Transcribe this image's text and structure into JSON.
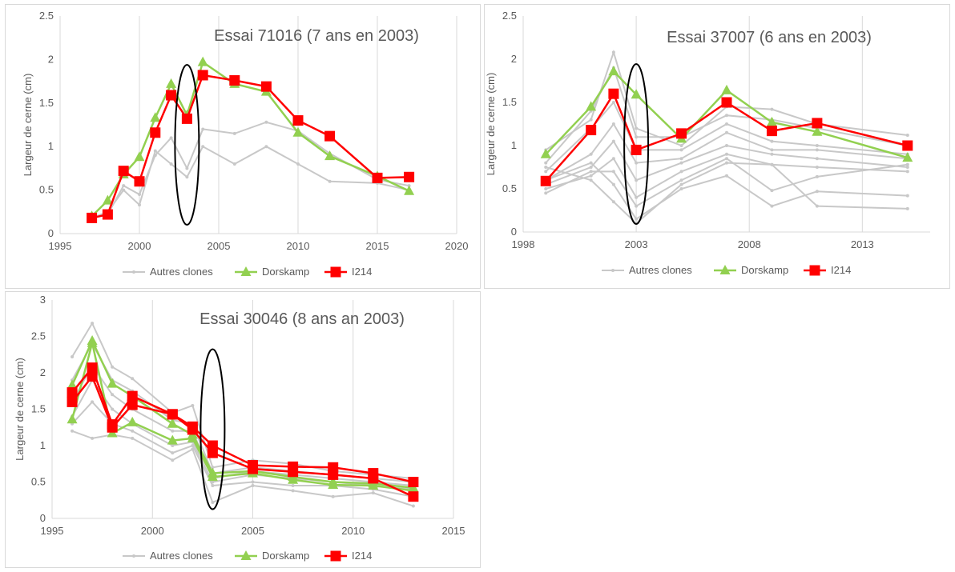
{
  "colors": {
    "others": "#c8c8c8",
    "dorskamp": "#92d050",
    "i214": "#ff0000",
    "ellipse": "#000000",
    "grid": "#d9d9d9",
    "text": "#595959"
  },
  "chart_data": [
    {
      "type": "line",
      "title": "Essai 71016 (7 ans en 2003)",
      "ylabel": "Largeur de cerne (cm)",
      "xlim": [
        1995,
        2020
      ],
      "ylim": [
        0,
        2.5
      ],
      "xticks": [
        "1995",
        "2000",
        "2005",
        "2010",
        "2015",
        "2020"
      ],
      "yticks": [
        "0",
        "0.5",
        "1",
        "1.5",
        "2",
        "2.5"
      ],
      "legend": [
        "Autres clones",
        "Dorskamp",
        "I214"
      ],
      "legend_position": "bottom",
      "ellipse_year": 2003,
      "series": [
        {
          "name": "Autres clones",
          "group": "others",
          "x": [
            1997,
            1998,
            1999,
            2000,
            2001,
            2002,
            2003,
            2004,
            2006,
            2008,
            2010,
            2012,
            2015,
            2017
          ],
          "y": [
            0.18,
            0.22,
            0.55,
            0.45,
            0.9,
            1.1,
            0.75,
            1.2,
            1.15,
            1.28,
            1.18,
            0.92,
            0.62,
            0.55
          ]
        },
        {
          "name": "",
          "group": "others",
          "x": [
            1997,
            1998,
            1999,
            2000,
            2001,
            2002,
            2003,
            2004,
            2006,
            2008,
            2010,
            2012,
            2015,
            2017
          ],
          "y": [
            0.18,
            0.25,
            0.5,
            0.33,
            0.95,
            0.8,
            0.65,
            1.0,
            0.8,
            1.0,
            0.8,
            0.6,
            0.58,
            0.5
          ]
        },
        {
          "name": "Dorskamp",
          "group": "dorskamp",
          "x": [
            1997,
            1998,
            1999,
            2000,
            2001,
            2002,
            2003,
            2004,
            2006,
            2008,
            2010,
            2012,
            2015,
            2017
          ],
          "y": [
            0.2,
            0.38,
            0.68,
            0.88,
            1.33,
            1.72,
            1.36,
            1.97,
            1.72,
            1.63,
            1.16,
            0.89,
            0.66,
            0.49
          ]
        },
        {
          "name": "I214",
          "group": "i214",
          "x": [
            1997,
            1998,
            1999,
            2000,
            2001,
            2002,
            2003,
            2004,
            2006,
            2008,
            2010,
            2012,
            2015,
            2017
          ],
          "y": [
            0.18,
            0.22,
            0.72,
            0.6,
            1.16,
            1.59,
            1.32,
            1.82,
            1.76,
            1.69,
            1.3,
            1.12,
            0.64,
            0.65
          ]
        }
      ]
    },
    {
      "type": "line",
      "title": "Essai 37007 (6 ans en 2003)",
      "ylabel": "Largeur de cerne (cm)",
      "xlim": [
        1998,
        2016
      ],
      "ylim": [
        0,
        2.5
      ],
      "xticks": [
        "1998",
        "2003",
        "2008",
        "2013"
      ],
      "yticks": [
        "0",
        "0.5",
        "1",
        "1.5",
        "2",
        "2.5"
      ],
      "legend": [
        "Autres clones",
        "Dorskamp",
        "I214"
      ],
      "legend_position": "bottom",
      "ellipse_year": 2003,
      "series": [
        {
          "name": "Autres clones",
          "group": "others",
          "x": [
            1999,
            2001,
            2002,
            2003,
            2005,
            2007,
            2009,
            2011,
            2015
          ],
          "y": [
            0.95,
            1.3,
            2.08,
            1.2,
            1.0,
            1.45,
            1.42,
            1.25,
            1.12
          ]
        },
        {
          "name": "",
          "group": "others",
          "x": [
            1999,
            2001,
            2002,
            2003,
            2005,
            2007,
            2009,
            2011,
            2015
          ],
          "y": [
            0.8,
            1.4,
            1.9,
            1.1,
            1.1,
            1.35,
            1.3,
            1.2,
            1.0
          ]
        },
        {
          "name": "",
          "group": "others",
          "x": [
            1999,
            2001,
            2002,
            2003,
            2005,
            2007,
            2009,
            2011,
            2015
          ],
          "y": [
            0.7,
            1.2,
            1.5,
            0.95,
            0.95,
            1.25,
            1.05,
            1.0,
            0.9
          ]
        },
        {
          "name": "",
          "group": "others",
          "x": [
            1999,
            2001,
            2002,
            2003,
            2005,
            2007,
            2009,
            2011,
            2015
          ],
          "y": [
            0.6,
            0.9,
            1.25,
            0.8,
            0.85,
            1.15,
            0.95,
            0.95,
            0.85
          ]
        },
        {
          "name": "",
          "group": "others",
          "x": [
            1999,
            2001,
            2002,
            2003,
            2005,
            2007,
            2009,
            2011,
            2015
          ],
          "y": [
            0.55,
            0.75,
            1.05,
            0.6,
            0.8,
            1.0,
            0.9,
            0.85,
            0.75
          ]
        },
        {
          "name": "",
          "group": "others",
          "x": [
            1999,
            2001,
            2002,
            2003,
            2005,
            2007,
            2009,
            2011,
            2015
          ],
          "y": [
            0.5,
            0.65,
            0.85,
            0.4,
            0.7,
            0.9,
            0.78,
            0.75,
            0.7
          ]
        },
        {
          "name": "",
          "group": "others",
          "x": [
            1999,
            2001,
            2002,
            2003,
            2005,
            2007,
            2009,
            2011,
            2015
          ],
          "y": [
            0.45,
            0.7,
            0.7,
            0.3,
            0.6,
            0.85,
            0.48,
            0.64,
            0.78
          ]
        },
        {
          "name": "",
          "group": "others",
          "x": [
            1999,
            2001,
            2002,
            2003,
            2005,
            2007,
            2009,
            2011,
            2015
          ],
          "y": [
            0.6,
            0.8,
            0.55,
            0.15,
            0.5,
            0.65,
            0.3,
            0.47,
            0.42
          ]
        },
        {
          "name": "",
          "group": "others",
          "x": [
            1999,
            2001,
            2002,
            2003,
            2005,
            2007,
            2009,
            2011,
            2015
          ],
          "y": [
            0.75,
            0.6,
            0.35,
            0.1,
            0.55,
            0.8,
            0.78,
            0.3,
            0.27
          ]
        },
        {
          "name": "Dorskamp",
          "group": "dorskamp",
          "x": [
            1999,
            2001,
            2002,
            2003,
            2005,
            2007,
            2009,
            2011,
            2015
          ],
          "y": [
            0.9,
            1.45,
            1.86,
            1.59,
            1.08,
            1.64,
            1.27,
            1.16,
            0.86
          ]
        },
        {
          "name": "I214",
          "group": "i214",
          "x": [
            1999,
            2001,
            2002,
            2003,
            2005,
            2007,
            2009,
            2011,
            2015
          ],
          "y": [
            0.59,
            1.18,
            1.6,
            0.95,
            1.14,
            1.5,
            1.17,
            1.26,
            1.0
          ]
        }
      ]
    },
    {
      "type": "line",
      "title": "Essai 30046 (8 ans an 2003)",
      "ylabel": "Largeur de cerne (cm)",
      "xlim": [
        1995,
        2015
      ],
      "ylim": [
        0,
        3
      ],
      "xticks": [
        "1995",
        "2000",
        "2005",
        "2010",
        "2015"
      ],
      "yticks": [
        "0",
        "0.5",
        "1",
        "1.5",
        "2",
        "2.5",
        "3"
      ],
      "legend": [
        "Autres clones",
        "Dorskamp",
        "I214"
      ],
      "legend_position": "bottom",
      "ellipse_year": 2003,
      "series": [
        {
          "name": "Autres clones",
          "group": "others",
          "x": [
            1996,
            1997,
            1998,
            1999,
            2001,
            2002,
            2003,
            2005,
            2007,
            2009,
            2011,
            2013
          ],
          "y": [
            2.22,
            2.68,
            2.08,
            1.92,
            1.45,
            1.55,
            0.7,
            0.8,
            0.75,
            0.65,
            0.6,
            0.55
          ]
        },
        {
          "name": "",
          "group": "others",
          "x": [
            1996,
            1997,
            1998,
            1999,
            2001,
            2002,
            2003,
            2005,
            2007,
            2009,
            2011,
            2013
          ],
          "y": [
            1.9,
            2.4,
            1.9,
            1.75,
            1.35,
            1.3,
            0.62,
            0.7,
            0.65,
            0.6,
            0.55,
            0.5
          ]
        },
        {
          "name": "",
          "group": "others",
          "x": [
            1996,
            1997,
            1998,
            1999,
            2001,
            2002,
            2003,
            2005,
            2007,
            2009,
            2011,
            2013
          ],
          "y": [
            1.6,
            2.1,
            1.7,
            1.5,
            1.2,
            1.2,
            0.55,
            0.65,
            0.6,
            0.55,
            0.5,
            0.45
          ]
        },
        {
          "name": "",
          "group": "others",
          "x": [
            1996,
            1997,
            1998,
            1999,
            2001,
            2002,
            2003,
            2005,
            2007,
            2009,
            2011,
            2013
          ],
          "y": [
            1.4,
            1.9,
            1.5,
            1.3,
            1.0,
            1.05,
            0.5,
            0.6,
            0.55,
            0.5,
            0.45,
            0.4
          ]
        },
        {
          "name": "",
          "group": "others",
          "x": [
            1996,
            1997,
            1998,
            1999,
            2001,
            2002,
            2003,
            2005,
            2007,
            2009,
            2011,
            2013
          ],
          "y": [
            1.3,
            1.6,
            1.3,
            1.2,
            0.9,
            1.0,
            0.45,
            0.5,
            0.45,
            0.45,
            0.4,
            0.3
          ]
        },
        {
          "name": "",
          "group": "others",
          "x": [
            1996,
            1997,
            1998,
            1999,
            2001,
            2002,
            2003,
            2005,
            2007,
            2009,
            2011,
            2013
          ],
          "y": [
            1.2,
            1.1,
            1.15,
            1.1,
            0.8,
            0.95,
            0.22,
            0.45,
            0.38,
            0.3,
            0.35,
            0.17
          ]
        },
        {
          "name": "Dorskamp",
          "group": "dorskamp",
          "x": [
            1996,
            1997,
            1998,
            1999,
            2001,
            2002,
            2003,
            2005,
            2007,
            2009,
            2011,
            2013
          ],
          "y": [
            1.83,
            2.44,
            1.85,
            1.68,
            1.3,
            1.15,
            0.62,
            0.65,
            0.57,
            0.5,
            0.48,
            0.42
          ]
        },
        {
          "name": "",
          "group": "dorskamp",
          "x": [
            1996,
            1997,
            1998,
            1999,
            2001,
            2002,
            2003,
            2005,
            2007,
            2009,
            2011,
            2013
          ],
          "y": [
            1.36,
            2.41,
            1.17,
            1.32,
            1.07,
            1.1,
            0.57,
            0.62,
            0.53,
            0.46,
            0.45,
            0.38
          ]
        },
        {
          "name": "I214",
          "group": "i214",
          "x": [
            1996,
            1997,
            1998,
            1999,
            2001,
            2002,
            2003,
            2005,
            2007,
            2009,
            2011,
            2013
          ],
          "y": [
            1.73,
            2.07,
            1.29,
            1.68,
            1.43,
            1.26,
            1.0,
            0.73,
            0.71,
            0.7,
            0.62,
            0.5
          ]
        },
        {
          "name": "",
          "group": "i214",
          "x": [
            1996,
            1997,
            1998,
            1999,
            2001,
            2002,
            2003,
            2005,
            2007,
            2009,
            2011,
            2013
          ],
          "y": [
            1.6,
            1.95,
            1.25,
            1.56,
            1.43,
            1.22,
            0.9,
            0.68,
            0.64,
            0.6,
            0.55,
            0.3
          ]
        }
      ]
    }
  ]
}
